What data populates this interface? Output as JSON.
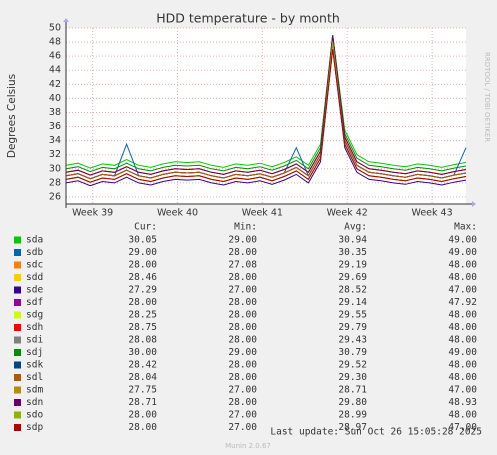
{
  "chart_data": {
    "type": "line",
    "title": "HDD temperature - by month",
    "y_label": "Degrees Celsius",
    "x": [
      0,
      1,
      2,
      3,
      4,
      5,
      6,
      7,
      8,
      9,
      10,
      11,
      12,
      13,
      14,
      15,
      16,
      17,
      18,
      19,
      20,
      21,
      22,
      23,
      24,
      25,
      26,
      27,
      28,
      29,
      30,
      31,
      32,
      33
    ],
    "xlim": [
      0,
      33
    ],
    "xticks": [
      {
        "value": 2.2,
        "label": "Week 39"
      },
      {
        "value": 9.2,
        "label": "Week 40"
      },
      {
        "value": 16.2,
        "label": "Week 41"
      },
      {
        "value": 23.2,
        "label": "Week 42"
      },
      {
        "value": 30.2,
        "label": "Week 43"
      }
    ],
    "ylim": [
      25,
      50
    ],
    "yticks": [
      26,
      28,
      30,
      32,
      34,
      36,
      38,
      40,
      42,
      44,
      46,
      48,
      50
    ],
    "grid": true,
    "series": [
      {
        "name": "sda",
        "color": "#00cc00",
        "values": [
          30.5,
          30.8,
          30.1,
          30.7,
          30.5,
          31.3,
          30.5,
          30.2,
          30.7,
          31,
          30.9,
          31,
          30.5,
          30.2,
          30.7,
          30.5,
          30.8,
          30.3,
          30.9,
          31.7,
          30.5,
          33.5,
          49,
          35.5,
          32,
          31,
          30.8,
          30.5,
          30.3,
          30.7,
          30.5,
          30.2,
          30.6,
          30.9
        ]
      },
      {
        "name": "sdb",
        "color": "#0066b3",
        "values": [
          29,
          29.3,
          28.6,
          29.2,
          29,
          33.5,
          29,
          28.7,
          29.2,
          29.5,
          29.4,
          29.5,
          29,
          28.7,
          29.2,
          29,
          29.3,
          28.8,
          29.4,
          33,
          29,
          32,
          49,
          34,
          30.5,
          29.5,
          29.3,
          29,
          28.8,
          29.2,
          29,
          28.7,
          29.1,
          33
        ]
      },
      {
        "name": "sdc",
        "color": "#ff8000",
        "values": [
          28.5,
          28.8,
          28.1,
          28.7,
          28.5,
          29.3,
          28.5,
          28.2,
          28.7,
          29,
          28.9,
          29,
          28.5,
          28.2,
          28.7,
          28.5,
          28.8,
          28.3,
          28.9,
          29.7,
          28.5,
          31.5,
          48,
          33.5,
          30,
          29,
          28.8,
          28.5,
          28.3,
          28.7,
          28.5,
          28.2,
          28.6,
          28.9
        ]
      },
      {
        "name": "sdd",
        "color": "#ffcc00",
        "values": [
          29.5,
          29.8,
          29.1,
          29.7,
          29.5,
          30.3,
          29.5,
          29.2,
          29.7,
          30,
          29.9,
          30,
          29.5,
          29.2,
          29.7,
          29.5,
          29.8,
          29.3,
          29.9,
          30.7,
          29.5,
          32.5,
          48,
          34.5,
          31,
          30,
          29.8,
          29.5,
          29.3,
          29.7,
          29.5,
          29.2,
          29.6,
          29.9
        ]
      },
      {
        "name": "sde",
        "color": "#330099",
        "values": [
          28,
          28.3,
          27.6,
          28.2,
          28,
          28.8,
          28,
          27.7,
          28.2,
          28.5,
          28.4,
          28.5,
          28,
          27.7,
          28.2,
          28,
          28.3,
          27.8,
          28.4,
          29.2,
          28,
          31,
          47,
          33,
          29.5,
          28.5,
          28.3,
          28,
          27.8,
          28.2,
          28,
          27.7,
          28.1,
          28.4
        ]
      },
      {
        "name": "sdf",
        "color": "#990099",
        "values": [
          29,
          29.3,
          28.6,
          29.2,
          29,
          29.8,
          29,
          28.7,
          29.2,
          29.5,
          29.4,
          29.5,
          29,
          28.7,
          29.2,
          29,
          29.3,
          28.8,
          29.4,
          30.2,
          29,
          32,
          47.92,
          34,
          30.5,
          29.5,
          29.3,
          29,
          28.8,
          29.2,
          29,
          28.7,
          29.1,
          29.4
        ]
      },
      {
        "name": "sdg",
        "color": "#ccff00",
        "values": [
          29.5,
          29.8,
          29.1,
          29.7,
          29.5,
          30.3,
          29.5,
          29.2,
          29.7,
          30,
          29.9,
          30,
          29.5,
          29.2,
          29.7,
          29.5,
          29.8,
          29.3,
          29.9,
          30.7,
          29.5,
          32.5,
          48,
          34.5,
          31,
          30,
          29.8,
          29.5,
          29.3,
          29.7,
          29.5,
          29.2,
          29.6,
          29.9
        ]
      },
      {
        "name": "sdh",
        "color": "#ff0000",
        "values": [
          29.5,
          29.8,
          29.1,
          29.7,
          29.5,
          30.3,
          29.5,
          29.2,
          29.7,
          30,
          29.9,
          30,
          29.5,
          29.2,
          29.7,
          29.5,
          29.8,
          29.3,
          29.9,
          30.7,
          29.5,
          32.5,
          48,
          34.5,
          31,
          30,
          29.8,
          29.5,
          29.3,
          29.7,
          29.5,
          29.2,
          29.6,
          29.9
        ]
      },
      {
        "name": "sdi",
        "color": "#808080",
        "values": [
          29,
          29.3,
          28.6,
          29.2,
          29,
          29.8,
          29,
          28.7,
          29.2,
          29.5,
          29.4,
          29.5,
          29,
          28.7,
          29.2,
          29,
          29.3,
          28.8,
          29.4,
          30.2,
          29,
          32,
          48,
          34,
          30.5,
          29.5,
          29.3,
          29,
          28.8,
          29.2,
          29,
          28.7,
          29.1,
          29.4
        ]
      },
      {
        "name": "sdj",
        "color": "#008f00",
        "values": [
          30,
          30.3,
          29.6,
          30.2,
          30,
          30.8,
          30,
          29.7,
          30.2,
          30.5,
          30.4,
          30.5,
          30,
          29.7,
          30.2,
          30,
          30.3,
          29.8,
          30.4,
          31.2,
          30,
          33,
          49,
          35,
          31.5,
          30.5,
          30.3,
          30,
          29.8,
          30.2,
          30,
          29.7,
          30.1,
          30.4
        ]
      },
      {
        "name": "sdk",
        "color": "#00487d",
        "values": [
          29,
          29.3,
          28.6,
          29.2,
          29,
          29.8,
          29,
          28.7,
          29.2,
          29.5,
          29.4,
          29.5,
          29,
          28.7,
          29.2,
          29,
          29.3,
          28.8,
          29.4,
          30.2,
          29,
          32,
          48,
          34,
          30.5,
          29.5,
          29.3,
          29,
          28.8,
          29.2,
          29,
          28.7,
          29.1,
          29.4
        ]
      },
      {
        "name": "sdl",
        "color": "#b35a00",
        "values": [
          29,
          29.3,
          28.6,
          29.2,
          29,
          29.8,
          29,
          28.7,
          29.2,
          29.5,
          29.4,
          29.5,
          29,
          28.7,
          29.2,
          29,
          29.3,
          28.8,
          29.4,
          30.2,
          29,
          32,
          48,
          34,
          30.5,
          29.5,
          29.3,
          29,
          28.8,
          29.2,
          29,
          28.7,
          29.1,
          29.4
        ]
      },
      {
        "name": "sdm",
        "color": "#b38f00",
        "values": [
          28.5,
          28.8,
          28.1,
          28.7,
          28.5,
          29.3,
          28.5,
          28.2,
          28.7,
          29,
          28.9,
          29,
          28.5,
          28.2,
          28.7,
          28.5,
          28.8,
          28.3,
          28.9,
          29.7,
          28.5,
          31.5,
          47,
          33.5,
          30,
          29,
          28.8,
          28.5,
          28.3,
          28.7,
          28.5,
          28.2,
          28.6,
          28.9
        ]
      },
      {
        "name": "sdn",
        "color": "#6b006b",
        "values": [
          29.5,
          29.8,
          29.1,
          29.7,
          29.5,
          30.3,
          29.5,
          29.2,
          29.7,
          30,
          29.9,
          30,
          29.5,
          29.2,
          29.7,
          29.5,
          29.8,
          29.3,
          29.9,
          30.7,
          29.5,
          32.5,
          48.93,
          34.5,
          31,
          30,
          29.8,
          29.5,
          29.3,
          29.7,
          29.5,
          29.2,
          29.6,
          29.9
        ]
      },
      {
        "name": "sdo",
        "color": "#8fb300",
        "values": [
          28.5,
          28.8,
          28.1,
          28.7,
          28.5,
          29.3,
          28.5,
          28.2,
          28.7,
          29,
          28.9,
          29,
          28.5,
          28.2,
          28.7,
          28.5,
          28.8,
          28.3,
          28.9,
          29.7,
          28.5,
          31.5,
          48,
          33.5,
          30,
          29,
          28.8,
          28.5,
          28.3,
          28.7,
          28.5,
          28.2,
          28.6,
          28.9
        ]
      },
      {
        "name": "sdp",
        "color": "#b30000",
        "values": [
          28.5,
          28.8,
          28.1,
          28.7,
          28.5,
          29.3,
          28.5,
          28.2,
          28.7,
          29,
          28.9,
          29,
          28.5,
          28.2,
          28.7,
          28.5,
          28.8,
          28.3,
          28.9,
          29.7,
          28.5,
          31.5,
          47,
          33.5,
          30,
          29,
          28.8,
          28.5,
          28.3,
          28.7,
          28.5,
          28.2,
          28.6,
          28.9
        ]
      }
    ]
  },
  "legend": {
    "headers": [
      "Cur:",
      "Min:",
      "Avg:",
      "Max:"
    ],
    "rows": [
      [
        "30.05",
        "29.00",
        "30.94",
        "49.00"
      ],
      [
        "29.00",
        "28.00",
        "30.35",
        "49.00"
      ],
      [
        "28.00",
        "27.08",
        "29.19",
        "48.00"
      ],
      [
        "28.46",
        "28.00",
        "29.69",
        "48.00"
      ],
      [
        "27.29",
        "27.00",
        "28.52",
        "47.00"
      ],
      [
        "28.00",
        "28.00",
        "29.14",
        "47.92"
      ],
      [
        "28.25",
        "28.00",
        "29.55",
        "48.00"
      ],
      [
        "28.75",
        "28.00",
        "29.79",
        "48.00"
      ],
      [
        "28.08",
        "28.00",
        "29.43",
        "48.00"
      ],
      [
        "30.00",
        "29.00",
        "30.79",
        "49.00"
      ],
      [
        "28.42",
        "28.00",
        "29.52",
        "48.00"
      ],
      [
        "28.04",
        "28.00",
        "29.30",
        "48.00"
      ],
      [
        "27.75",
        "27.00",
        "28.71",
        "47.00"
      ],
      [
        "28.71",
        "28.00",
        "29.80",
        "48.93"
      ],
      [
        "28.00",
        "27.00",
        "28.99",
        "48.00"
      ],
      [
        "28.00",
        "27.00",
        "28.97",
        "47.00"
      ]
    ]
  },
  "last_update": "Last update: Sun Oct 26 15:05:28 2025",
  "footer": "Munin 2.0.67",
  "watermark": "RRDTOOL / TOBI OETIKER"
}
